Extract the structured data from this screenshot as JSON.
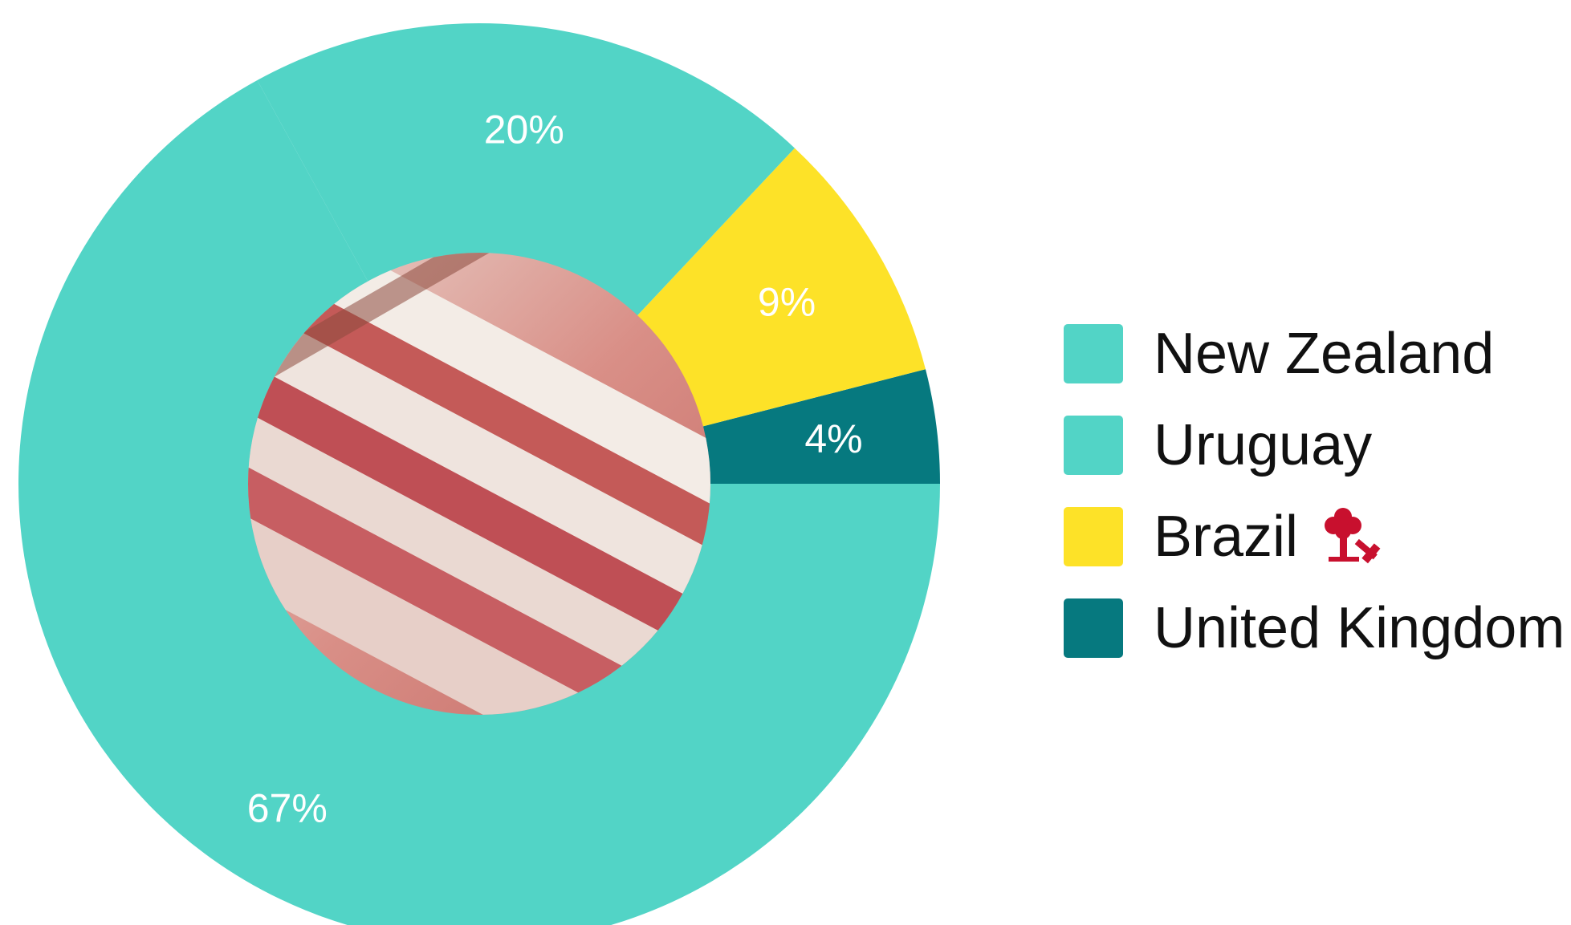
{
  "chart_data": {
    "type": "pie",
    "donut": true,
    "center_image": "raw pork ribs photo",
    "categories": [
      "New Zealand",
      "Uruguay",
      "Brazil",
      "United Kingdom"
    ],
    "values": [
      67,
      20,
      9,
      4
    ],
    "labels": [
      "67%",
      "20%",
      "9%",
      "4%"
    ],
    "colors": [
      "#52d4c6",
      "#52d4c6",
      "#fde228",
      "#06797f"
    ],
    "legend_position": "right",
    "legend_icons": {
      "Brazil": "deforestation-icon"
    }
  }
}
